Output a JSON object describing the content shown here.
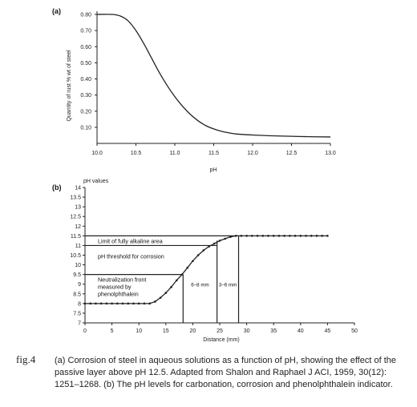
{
  "chart_data": [
    {
      "panel_label": "(a)",
      "type": "line",
      "xlabel": "pH",
      "ylabel": "Quantity of rust % wt of steel",
      "xlim": [
        10.0,
        13.0
      ],
      "ylim": [
        0,
        0.8
      ],
      "x_ticks": [
        "10.0",
        "10.5",
        "11.0",
        "11.5",
        "12.0",
        "12.5",
        "13.0"
      ],
      "y_ticks": [
        "0.10",
        "0.20",
        "0.30",
        "0.40",
        "0.50",
        "0.60",
        "0.70",
        "0.80"
      ],
      "x": [
        10.0,
        10.2,
        10.3,
        10.4,
        10.5,
        10.6,
        10.7,
        10.8,
        10.9,
        11.0,
        11.1,
        11.2,
        11.3,
        11.4,
        11.5,
        11.6,
        11.7,
        11.8,
        12.0,
        12.2,
        12.5,
        12.8,
        13.0
      ],
      "y": [
        0.8,
        0.8,
        0.79,
        0.76,
        0.7,
        0.62,
        0.53,
        0.44,
        0.36,
        0.29,
        0.23,
        0.18,
        0.14,
        0.11,
        0.09,
        0.075,
        0.065,
        0.058,
        0.052,
        0.048,
        0.044,
        0.041,
        0.04
      ]
    },
    {
      "panel_label": "(b)",
      "type": "line",
      "xlabel": "Distance (mm)",
      "ylabel": "pH values",
      "xlim": [
        0,
        50
      ],
      "ylim": [
        7,
        14
      ],
      "x_ticks": [
        "0",
        "5",
        "10",
        "15",
        "20",
        "25",
        "30",
        "35",
        "40",
        "45",
        "50"
      ],
      "y_ticks": [
        "7",
        "7.5",
        "8",
        "8.5",
        "9",
        "9.5",
        "10",
        "10.5",
        "11",
        "11.5",
        "12",
        "12.5",
        "13",
        "13.5",
        "14"
      ],
      "x": [
        0,
        1,
        2,
        3,
        4,
        5,
        6,
        7,
        8,
        9,
        10,
        11,
        12,
        13,
        14,
        15,
        16,
        17,
        18,
        19,
        20,
        21,
        22,
        23,
        24,
        25,
        26,
        27,
        28,
        29,
        30,
        31,
        32,
        33,
        34,
        35,
        36,
        37,
        38,
        39,
        40,
        41,
        42,
        43,
        44,
        45
      ],
      "y": [
        8,
        8,
        8,
        8,
        8,
        8,
        8,
        8,
        8,
        8,
        8,
        8,
        8,
        8.1,
        8.3,
        8.55,
        8.85,
        9.2,
        9.5,
        9.85,
        10.2,
        10.5,
        10.75,
        10.95,
        11.1,
        11.25,
        11.35,
        11.45,
        11.5,
        11.5,
        11.5,
        11.5,
        11.5,
        11.5,
        11.5,
        11.5,
        11.5,
        11.5,
        11.5,
        11.5,
        11.5,
        11.5,
        11.5,
        11.5,
        11.5,
        11.5
      ],
      "annotations": [
        {
          "text": "Limit of fully alkaline area",
          "y": 11.5,
          "x_end": 28.5
        },
        {
          "text": "pH threshold for corrosion",
          "y": 11,
          "x_end": 24.5
        },
        {
          "lines": [
            "Neutralization front",
            "measured by",
            "phenolphthalein"
          ],
          "y": 9.5,
          "x_end": 18.2
        },
        {
          "text": "6–8 mm",
          "between": [
            18.2,
            24.5
          ]
        },
        {
          "text": "3–6 mm",
          "between": [
            24.5,
            28.5
          ]
        }
      ],
      "markers_x": [
        18.2,
        24.5,
        28.5
      ]
    }
  ],
  "caption": {
    "label": "fig.4",
    "text": "(a) Corrosion of steel in aqueous solutions as a function of pH, showing the effect of the passive layer above pH 12.5. Adapted from Shalon and Raphael J ACI, 1959, 30(12): 1251–1268. (b) The pH levels for carbonation, corrosion and phenolphthalein indicator."
  }
}
